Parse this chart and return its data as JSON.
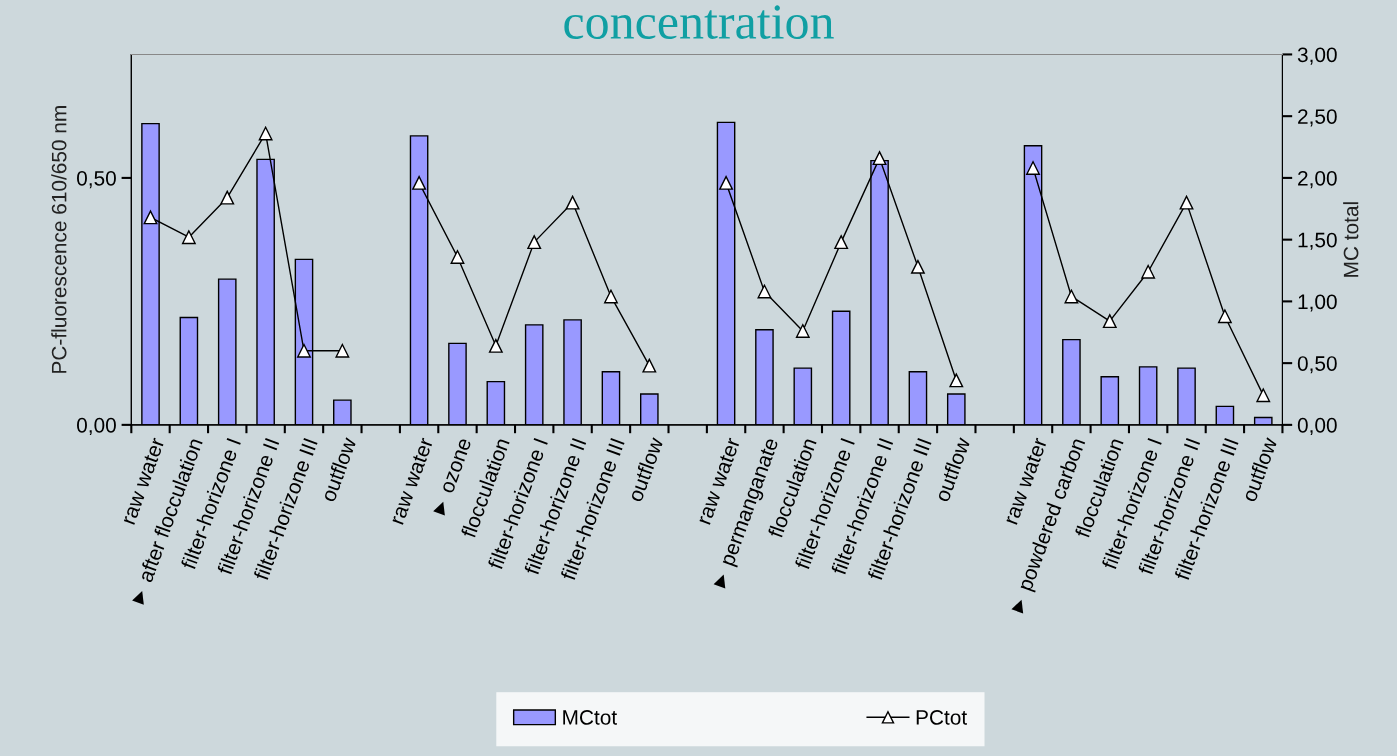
{
  "chart_data": {
    "type": "bar",
    "title": "concentration",
    "ylabel": "PC-fluorescence 610/650 nm",
    "y2label": "MC total",
    "categories": [
      "raw water",
      "► after flocculation",
      "filter-horizone I",
      "filter-horizone II",
      "filter-horizone III",
      "outflow",
      null,
      "raw water",
      "► ozone",
      "flocculation",
      "filter-horizone I",
      "filter-horizone II",
      "filter-horizone III",
      "outflow",
      null,
      "raw water",
      "► permanganate",
      "flocculation",
      "filter-horizone I",
      "filter-horizone II",
      "filter-horizone III",
      "outflow",
      null,
      "raw water",
      "► powdered carbon",
      "flocculation",
      "filter-horizone I",
      "filter-horizone II",
      "filter-horizone III",
      "outflow"
    ],
    "series": [
      {
        "name": "MCtot",
        "axis": "y2",
        "color": "#9999ff",
        "values": [
          2.44,
          0.87,
          1.18,
          2.15,
          1.34,
          0.2,
          null,
          2.34,
          0.66,
          0.35,
          0.81,
          0.85,
          0.43,
          0.25,
          null,
          2.45,
          0.77,
          0.46,
          0.92,
          2.14,
          0.43,
          0.25,
          null,
          2.26,
          0.69,
          0.39,
          0.47,
          0.46,
          0.15,
          0.06
        ]
      },
      {
        "name": "PCtot",
        "type": "line",
        "axis": "y",
        "color": "#000000",
        "marker": "triangle",
        "values": [
          0.42,
          0.38,
          0.46,
          0.59,
          0.15,
          0.15,
          null,
          0.49,
          0.34,
          0.16,
          0.37,
          0.45,
          0.26,
          0.12,
          null,
          0.49,
          0.27,
          0.19,
          0.37,
          0.54,
          0.32,
          0.09,
          null,
          0.52,
          0.26,
          0.21,
          0.31,
          0.45,
          0.22,
          0.06
        ]
      }
    ],
    "ylim": [
      0,
      0.75
    ],
    "yticks": [
      {
        "value": 0,
        "label": "0,00"
      },
      {
        "value": 0.5,
        "label": "0,50"
      }
    ],
    "y2lim": [
      0,
      3
    ],
    "y2ticks": [
      {
        "value": 0,
        "label": "0,00"
      },
      {
        "value": 0.5,
        "label": "0,50"
      },
      {
        "value": 1,
        "label": "1,00"
      },
      {
        "value": 1.5,
        "label": "1,50"
      },
      {
        "value": 2,
        "label": "2,00"
      },
      {
        "value": 2.5,
        "label": "2,50"
      },
      {
        "value": 3,
        "label": "3,00"
      }
    ],
    "grid": false,
    "legend": "bottom"
  }
}
